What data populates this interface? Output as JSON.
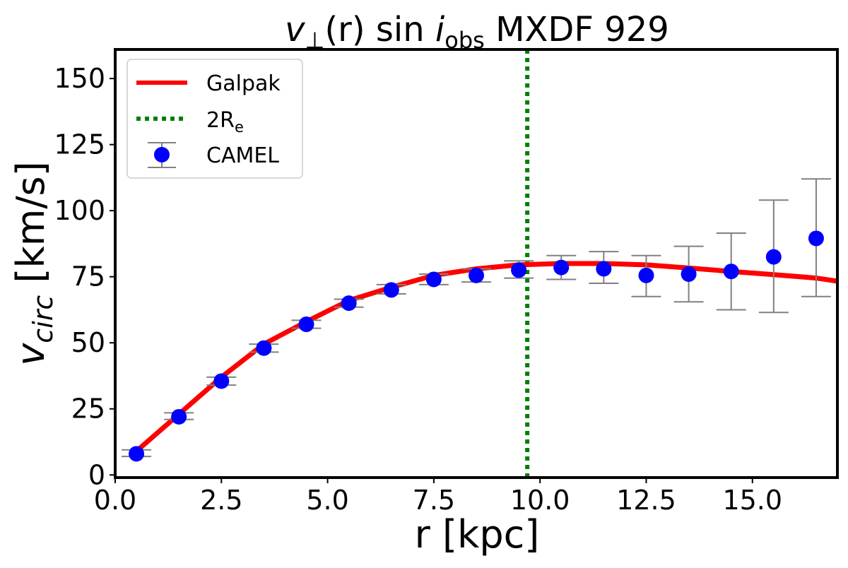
{
  "chart_data": {
    "type": "line",
    "title": {
      "v": "v",
      "sub1": "⊥",
      "mid": "(r) sin ",
      "i": "i",
      "sub2": "obs",
      "rest": " MXDF 929"
    },
    "xlabel": "r [kpc]",
    "ylabel": {
      "main": "v",
      "sub": "circ",
      "rest": " [km/s]"
    },
    "xlim": [
      0,
      17
    ],
    "ylim": [
      -1,
      161
    ],
    "xticks": [
      0.0,
      2.5,
      5.0,
      7.5,
      10.0,
      12.5,
      15.0
    ],
    "xtick_labels": [
      "0.0",
      "2.5",
      "5.0",
      "7.5",
      "10.0",
      "12.5",
      "15.0"
    ],
    "yticks": [
      0,
      25,
      50,
      75,
      100,
      125,
      150
    ],
    "ytick_labels": [
      "0",
      "25",
      "50",
      "75",
      "100",
      "125",
      "150"
    ],
    "grid": false,
    "legend_placement": "top-left",
    "series": [
      {
        "name": "Galpak",
        "kind": "line",
        "color": "#ff0000",
        "x": [
          0.5,
          1.5,
          2.5,
          3.5,
          4.5,
          5.5,
          6.5,
          7.5,
          8.5,
          9.5,
          10.5,
          11.5,
          12.5,
          13.5,
          14.5,
          15.5,
          16.5,
          17.0
        ],
        "y": [
          9,
          23,
          37,
          49.5,
          58,
          66,
          71,
          75.5,
          78,
          79.5,
          80,
          80,
          79.5,
          78.3,
          77,
          75.8,
          74.5,
          73.3
        ]
      },
      {
        "name": "CAMEL",
        "kind": "errorbar",
        "color": "#0000ff",
        "errcolor": "#808080",
        "x": [
          0.5,
          1.5,
          2.5,
          3.5,
          4.5,
          5.5,
          6.5,
          7.5,
          8.5,
          9.5,
          10.5,
          11.5,
          12.5,
          13.5,
          14.5,
          15.5,
          16.5
        ],
        "y": [
          8,
          22,
          35.5,
          48,
          57,
          65,
          70,
          74,
          75.5,
          77.5,
          78.5,
          78,
          75.5,
          76,
          77,
          82.5,
          89.5
        ],
        "ylow": [
          7,
          21,
          34,
          46.5,
          55.5,
          63.5,
          68.5,
          72,
          73,
          74.5,
          74,
          72.5,
          67.5,
          65.5,
          62.5,
          61.5,
          67.5
        ],
        "yhigh": [
          9.5,
          23.5,
          37,
          49.5,
          58.5,
          66.5,
          72,
          76,
          78,
          81,
          83,
          84.5,
          83,
          86.5,
          91.5,
          104,
          112
        ]
      }
    ],
    "vlines": [
      {
        "name": "2R_e",
        "x": 9.7,
        "color": "#008000",
        "style": "dotted"
      }
    ],
    "legend": [
      {
        "label": "Galpak"
      },
      {
        "label": "2R",
        "sub": "e"
      },
      {
        "label": "CAMEL"
      }
    ]
  }
}
